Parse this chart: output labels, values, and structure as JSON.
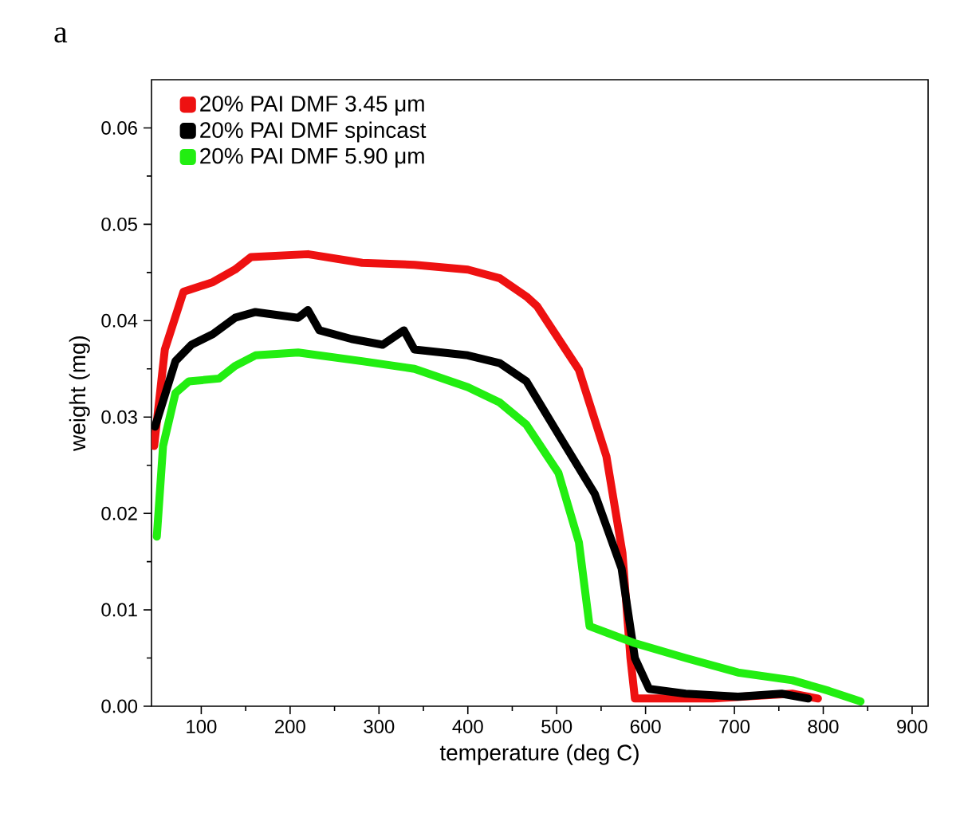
{
  "chart_data": {
    "type": "line",
    "title": "a",
    "xlabel": "temperature (deg C)",
    "ylabel": "weight (mg)",
    "xlim": [
      44,
      918
    ],
    "ylim": [
      0,
      0.065
    ],
    "xticks": [
      100,
      200,
      300,
      400,
      500,
      600,
      700,
      800,
      900
    ],
    "yticks": [
      {
        "value": 0,
        "label": "0.00"
      },
      0.01,
      0.02,
      0.03,
      0.04,
      0.05,
      0.06
    ],
    "legend": "top left",
    "grid": false,
    "series": [
      {
        "name": "20% PAI DMF 3.45 μm",
        "color": "#ee1111",
        "x": [
          47,
          59,
          80,
          113,
          138,
          156,
          220,
          281,
          340,
          400,
          436,
          466,
          478,
          525,
          556,
          574,
          583,
          588,
          676,
          765,
          794
        ],
        "values": [
          0.027,
          0.037,
          0.043,
          0.044,
          0.0453,
          0.0466,
          0.0469,
          0.046,
          0.0458,
          0.0453,
          0.0444,
          0.0425,
          0.0415,
          0.0349,
          0.0259,
          0.0159,
          0.005,
          0.0008,
          0.0008,
          0.0013,
          0.0008
        ]
      },
      {
        "name": "20% PAI DMF spincast",
        "color": "#000000",
        "x": [
          48,
          71,
          89,
          113,
          138,
          161,
          209,
          220,
          233,
          269,
          304,
          328,
          340,
          400,
          436,
          466,
          502,
          543,
          573,
          588,
          604,
          645,
          704,
          753,
          783
        ],
        "values": [
          0.029,
          0.0358,
          0.0375,
          0.0386,
          0.0403,
          0.0409,
          0.0403,
          0.0411,
          0.039,
          0.0381,
          0.0375,
          0.039,
          0.037,
          0.0364,
          0.0356,
          0.0337,
          0.0282,
          0.022,
          0.0143,
          0.005,
          0.0018,
          0.0013,
          0.001,
          0.0013,
          0.0008
        ]
      },
      {
        "name": "20% PAI DMF 5.90 μm",
        "color": "#22ee11",
        "x": [
          50,
          57,
          71,
          86,
          120,
          138,
          161,
          209,
          281,
          340,
          400,
          436,
          466,
          502,
          525,
          537,
          586,
          645,
          704,
          765,
          806,
          842
        ],
        "values": [
          0.0176,
          0.027,
          0.0325,
          0.0337,
          0.034,
          0.0353,
          0.0364,
          0.0367,
          0.0358,
          0.035,
          0.0331,
          0.0315,
          0.0292,
          0.0242,
          0.017,
          0.0083,
          0.0066,
          0.005,
          0.0035,
          0.0027,
          0.0016,
          0.0005
        ]
      }
    ]
  }
}
